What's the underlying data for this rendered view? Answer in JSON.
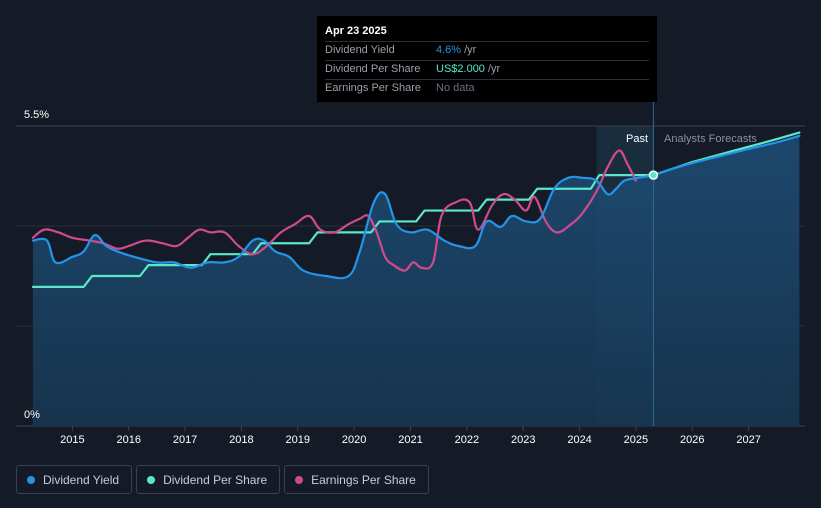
{
  "tooltip": {
    "date": "Apr 23 2025",
    "rows": [
      {
        "label": "Dividend Yield",
        "value": "4.6%",
        "unit": "/yr",
        "color": "#2394e8"
      },
      {
        "label": "Dividend Per Share",
        "value": "US$2.000",
        "unit": "/yr",
        "color": "#5ae8c8"
      },
      {
        "label": "Earnings Per Share",
        "value": "No data",
        "unit": "",
        "color": "#6b7080"
      }
    ]
  },
  "legend": [
    {
      "label": "Dividend Yield",
      "color": "#2394e8"
    },
    {
      "label": "Dividend Per Share",
      "color": "#5ae8c8"
    },
    {
      "label": "Earnings Per Share",
      "color": "#d04a8e"
    }
  ],
  "chart_data": {
    "type": "line",
    "y_top_label": "5.5%",
    "y_bottom_label": "0%",
    "ylim": [
      0,
      5.5
    ],
    "xlim": [
      2014.0,
      2028.0
    ],
    "x_ticks": [
      "2015",
      "2016",
      "2017",
      "2018",
      "2019",
      "2020",
      "2021",
      "2022",
      "2023",
      "2024",
      "2025",
      "2026",
      "2027"
    ],
    "past_label": "Past",
    "forecast_label": "Analysts Forecasts",
    "past_start": 2024.3,
    "forecast_start": 2025.31,
    "marker": {
      "x": 2025.31,
      "y": 4.6
    },
    "series": [
      {
        "name": "Dividend Yield",
        "color": "#2394e8",
        "fill": true,
        "x": [
          2014.3,
          2014.55,
          2014.7,
          2015.0,
          2015.2,
          2015.4,
          2015.6,
          2015.8,
          2016.1,
          2016.5,
          2016.8,
          2017.1,
          2017.4,
          2017.7,
          2017.95,
          2018.2,
          2018.4,
          2018.6,
          2018.85,
          2019.1,
          2019.5,
          2019.9,
          2020.1,
          2020.35,
          2020.55,
          2020.75,
          2021.0,
          2021.3,
          2021.6,
          2021.85,
          2022.15,
          2022.35,
          2022.6,
          2022.8,
          2023.05,
          2023.3,
          2023.55,
          2023.8,
          2024.05,
          2024.3,
          2024.5,
          2024.65,
          2024.8,
          2025.05,
          2025.31,
          2025.6,
          2026.0,
          2026.5,
          2027.0,
          2027.5,
          2027.9
        ],
        "y": [
          3.4,
          3.4,
          3.0,
          3.1,
          3.2,
          3.5,
          3.3,
          3.2,
          3.1,
          3.0,
          3.0,
          2.9,
          3.0,
          3.0,
          3.1,
          3.4,
          3.4,
          3.2,
          3.1,
          2.85,
          2.75,
          2.75,
          3.2,
          4.1,
          4.25,
          3.7,
          3.55,
          3.6,
          3.4,
          3.3,
          3.3,
          3.75,
          3.65,
          3.85,
          3.75,
          3.8,
          4.35,
          4.55,
          4.55,
          4.5,
          4.25,
          4.35,
          4.5,
          4.55,
          4.6,
          4.7,
          4.82,
          4.95,
          5.08,
          5.2,
          5.32
        ]
      },
      {
        "name": "Dividend Per Share",
        "color": "#5ae8c8",
        "fill": false,
        "x": [
          2014.3,
          2015.2,
          2015.35,
          2016.2,
          2016.35,
          2017.3,
          2017.45,
          2018.2,
          2018.35,
          2019.2,
          2019.35,
          2020.3,
          2020.45,
          2021.1,
          2021.25,
          2022.2,
          2022.35,
          2023.1,
          2023.25,
          2024.2,
          2024.35,
          2025.31,
          2025.6,
          2026.0,
          2026.5,
          2027.0,
          2027.5,
          2027.9
        ],
        "y": [
          2.55,
          2.55,
          2.75,
          2.75,
          2.95,
          2.95,
          3.15,
          3.15,
          3.35,
          3.35,
          3.55,
          3.55,
          3.75,
          3.75,
          3.95,
          3.95,
          4.15,
          4.15,
          4.35,
          4.35,
          4.6,
          4.6,
          4.7,
          4.84,
          4.98,
          5.12,
          5.26,
          5.38
        ]
      },
      {
        "name": "Earnings Per Share",
        "color": "#d04a8e",
        "fill": false,
        "x": [
          2014.3,
          2014.5,
          2014.75,
          2015.0,
          2015.3,
          2015.55,
          2015.8,
          2016.0,
          2016.3,
          2016.6,
          2016.85,
          2017.05,
          2017.25,
          2017.45,
          2017.7,
          2017.95,
          2018.2,
          2018.45,
          2018.7,
          2018.95,
          2019.2,
          2019.4,
          2019.65,
          2019.9,
          2020.1,
          2020.25,
          2020.4,
          2020.55,
          2020.7,
          2020.9,
          2021.05,
          2021.2,
          2021.4,
          2021.55,
          2021.8,
          2022.05,
          2022.2,
          2022.45,
          2022.65,
          2022.85,
          2023.05,
          2023.2,
          2023.4,
          2023.6,
          2023.85,
          2024.05,
          2024.3,
          2024.5,
          2024.7,
          2024.85,
          2025.0
        ],
        "y": [
          3.45,
          3.6,
          3.55,
          3.45,
          3.4,
          3.35,
          3.25,
          3.3,
          3.4,
          3.35,
          3.3,
          3.45,
          3.6,
          3.55,
          3.55,
          3.3,
          3.15,
          3.3,
          3.55,
          3.7,
          3.85,
          3.6,
          3.55,
          3.7,
          3.8,
          3.85,
          3.55,
          3.1,
          2.95,
          2.85,
          3.0,
          2.9,
          3.0,
          3.85,
          4.1,
          4.1,
          3.6,
          4.05,
          4.25,
          4.15,
          3.95,
          4.2,
          3.75,
          3.55,
          3.7,
          3.9,
          4.3,
          4.75,
          5.05,
          4.8,
          4.5
        ]
      }
    ]
  }
}
